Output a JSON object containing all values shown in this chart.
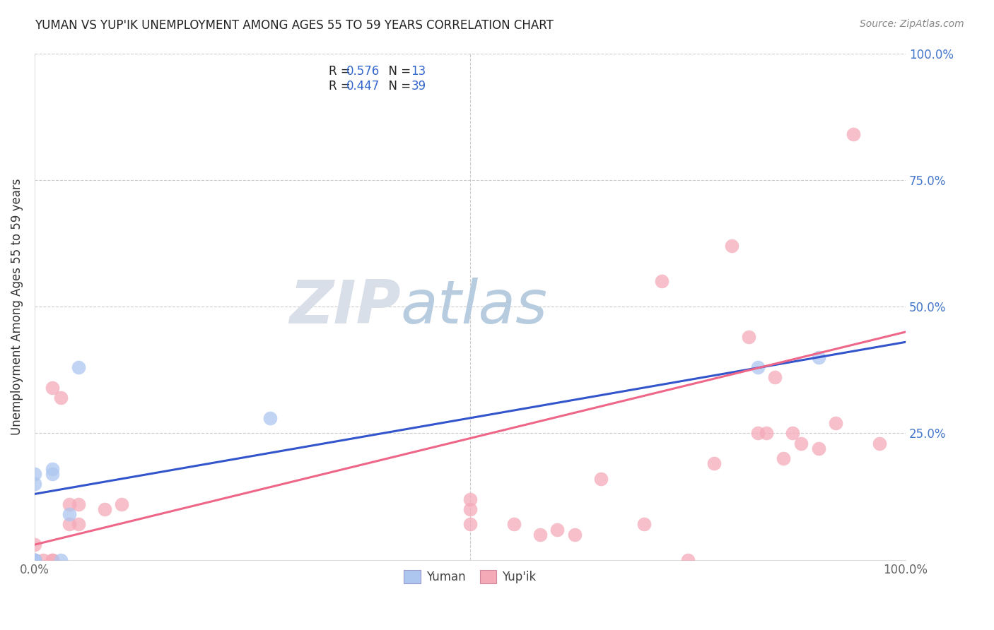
{
  "title": "YUMAN VS YUP'IK UNEMPLOYMENT AMONG AGES 55 TO 59 YEARS CORRELATION CHART",
  "source": "Source: ZipAtlas.com",
  "ylabel": "Unemployment Among Ages 55 to 59 years",
  "xlim": [
    0,
    1.0
  ],
  "ylim": [
    0,
    1.0
  ],
  "background_color": "#ffffff",
  "grid_color": "#cccccc",
  "watermark_zip": "ZIP",
  "watermark_atlas": "atlas",
  "watermark_zip_color": "#d8dfe8",
  "watermark_atlas_color": "#b8cce0",
  "yuman_color": "#adc6f0",
  "yupik_color": "#f5aab8",
  "yuman_edge_color": "#88aadd",
  "yupik_edge_color": "#ee8899",
  "yuman_line_color": "#3355cc",
  "yupik_line_color": "#ee6688",
  "tick_color_right": "#4477cc",
  "tick_color_bottom": "#666666",
  "yuman_R": "0.576",
  "yuman_N": "13",
  "yupik_R": "0.447",
  "yupik_N": "39",
  "legend_text_color": "#222222",
  "legend_value_color": "#3366cc",
  "yuman_points": [
    [
      0.0,
      0.17
    ],
    [
      0.0,
      0.15
    ],
    [
      0.0,
      0.0
    ],
    [
      0.0,
      0.0
    ],
    [
      0.0,
      0.0
    ],
    [
      0.02,
      0.18
    ],
    [
      0.02,
      0.17
    ],
    [
      0.03,
      0.0
    ],
    [
      0.04,
      0.09
    ],
    [
      0.05,
      0.38
    ],
    [
      0.27,
      0.28
    ],
    [
      0.83,
      0.38
    ],
    [
      0.9,
      0.4
    ]
  ],
  "yupik_points": [
    [
      0.0,
      0.0
    ],
    [
      0.0,
      0.0
    ],
    [
      0.0,
      0.0
    ],
    [
      0.0,
      0.03
    ],
    [
      0.01,
      0.0
    ],
    [
      0.02,
      0.0
    ],
    [
      0.02,
      0.0
    ],
    [
      0.02,
      0.34
    ],
    [
      0.03,
      0.32
    ],
    [
      0.04,
      0.07
    ],
    [
      0.04,
      0.11
    ],
    [
      0.05,
      0.11
    ],
    [
      0.05,
      0.07
    ],
    [
      0.08,
      0.1
    ],
    [
      0.1,
      0.11
    ],
    [
      0.5,
      0.07
    ],
    [
      0.5,
      0.1
    ],
    [
      0.5,
      0.12
    ],
    [
      0.55,
      0.07
    ],
    [
      0.58,
      0.05
    ],
    [
      0.6,
      0.06
    ],
    [
      0.62,
      0.05
    ],
    [
      0.65,
      0.16
    ],
    [
      0.7,
      0.07
    ],
    [
      0.72,
      0.55
    ],
    [
      0.75,
      0.0
    ],
    [
      0.78,
      0.19
    ],
    [
      0.8,
      0.62
    ],
    [
      0.82,
      0.44
    ],
    [
      0.83,
      0.25
    ],
    [
      0.84,
      0.25
    ],
    [
      0.85,
      0.36
    ],
    [
      0.86,
      0.2
    ],
    [
      0.87,
      0.25
    ],
    [
      0.88,
      0.23
    ],
    [
      0.9,
      0.22
    ],
    [
      0.92,
      0.27
    ],
    [
      0.94,
      0.84
    ],
    [
      0.97,
      0.23
    ]
  ],
  "yuman_trend_intercept": 0.13,
  "yuman_trend_slope": 0.3,
  "yupik_trend_intercept": 0.03,
  "yupik_trend_slope": 0.42
}
